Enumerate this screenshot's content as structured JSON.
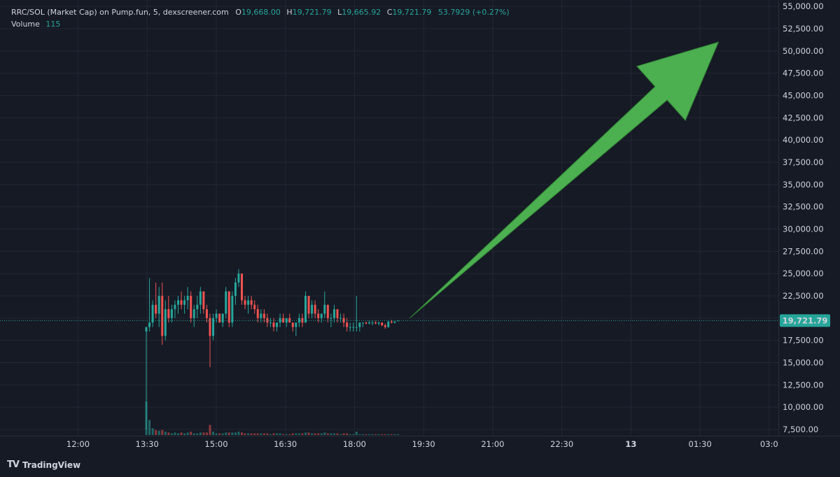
{
  "legend": {
    "symbol": "RRC/SOL (Market Cap) on Pump.fun, 5, dexscreener.com",
    "o_key": "O",
    "o_val": "19,668.00",
    "h_key": "H",
    "h_val": "19,721.79",
    "l_key": "L",
    "l_val": "19,665.92",
    "c_key": "C",
    "c_val": "19,721.79",
    "change": "53.7929 (+0.27%)",
    "volume_label": "Volume",
    "volume_val": "115"
  },
  "brand": {
    "logo": "TV",
    "name": "TradingView"
  },
  "colors": {
    "up": "#26a69a",
    "down": "#ef5350",
    "arrow": "#4caf50",
    "background": "#161a25",
    "grid": "#232734"
  },
  "chart_data": {
    "type": "candlestick",
    "price_axis": {
      "min": 7500,
      "max": 55000,
      "ticks": [
        7500,
        10000,
        12500,
        15000,
        17500,
        20000,
        22500,
        25000,
        27500,
        30000,
        32500,
        35000,
        37500,
        40000,
        42500,
        45000,
        47500,
        50000,
        52500,
        55000
      ],
      "tick_labels": [
        "7,500.00",
        "10,000.00",
        "12,500.00",
        "15,000.00",
        "17,500.00",
        "20,000.00",
        "22,500.00",
        "25,000.00",
        "27,500.00",
        "30,000.00",
        "32,500.00",
        "35,000.00",
        "37,500.00",
        "40,000.00",
        "42,500.00",
        "45,000.00",
        "47,500.00",
        "50,000.00",
        "52,500.00",
        "55,000.00"
      ]
    },
    "time_axis": {
      "start_hours": 11.4,
      "end_hours": 27.2,
      "tick_hours": [
        12,
        13.5,
        15,
        16.5,
        18,
        19.5,
        21,
        22.5,
        24,
        25.5,
        27
      ],
      "tick_labels": [
        "12:00",
        "13:30",
        "15:00",
        "16:30",
        "18:00",
        "19:30",
        "21:00",
        "22:30",
        "13",
        "01:30",
        "03:0"
      ]
    },
    "grid": true,
    "last_price": 19721.79,
    "last_price_label": "19,721.79",
    "candles": [
      [
        18500,
        19000,
        7500,
        19000,
        40
      ],
      [
        19000,
        24500,
        18500,
        19500,
        18
      ],
      [
        19500,
        22000,
        19000,
        21500,
        8
      ],
      [
        21500,
        24000,
        20000,
        20500,
        6
      ],
      [
        20500,
        23500,
        19000,
        22500,
        5
      ],
      [
        22500,
        24000,
        17000,
        18000,
        6
      ],
      [
        18000,
        22000,
        17500,
        21000,
        4
      ],
      [
        21000,
        22500,
        19500,
        20000,
        3
      ],
      [
        20000,
        21500,
        19500,
        21000,
        2
      ],
      [
        21000,
        22000,
        20000,
        21500,
        3
      ],
      [
        21500,
        22500,
        20500,
        22000,
        2
      ],
      [
        22000,
        23000,
        21000,
        21500,
        3
      ],
      [
        21500,
        22500,
        20500,
        22000,
        2
      ],
      [
        22000,
        23500,
        21000,
        22500,
        3
      ],
      [
        22500,
        23000,
        19500,
        20000,
        4
      ],
      [
        20000,
        21500,
        19000,
        21000,
        2
      ],
      [
        21000,
        22500,
        20000,
        21500,
        2
      ],
      [
        21500,
        23500,
        20500,
        23000,
        3
      ],
      [
        23000,
        23000,
        20500,
        21000,
        3
      ],
      [
        21000,
        21500,
        19500,
        20000,
        3
      ],
      [
        20000,
        20500,
        14500,
        18000,
        12
      ],
      [
        18000,
        20500,
        17500,
        20000,
        4
      ],
      [
        20000,
        21000,
        19500,
        20500,
        2
      ],
      [
        20500,
        20500,
        19500,
        19500,
        2
      ],
      [
        19500,
        20500,
        19000,
        20500,
        2
      ],
      [
        20500,
        23500,
        20000,
        23000,
        3
      ],
      [
        23000,
        23000,
        19000,
        19500,
        3
      ],
      [
        19500,
        23000,
        19000,
        22500,
        3
      ],
      [
        22500,
        24500,
        21500,
        24000,
        3
      ],
      [
        24000,
        25500,
        23500,
        25000,
        4
      ],
      [
        25000,
        25000,
        21500,
        22000,
        3
      ],
      [
        22000,
        22500,
        21000,
        21500,
        2
      ],
      [
        21500,
        22500,
        20500,
        22000,
        2
      ],
      [
        22000,
        22500,
        21000,
        21500,
        2
      ],
      [
        21500,
        22000,
        20500,
        21000,
        2
      ],
      [
        21000,
        21500,
        19500,
        20000,
        2
      ],
      [
        20000,
        21000,
        19500,
        20500,
        2
      ],
      [
        20500,
        21000,
        19500,
        20000,
        2
      ],
      [
        20000,
        20500,
        19000,
        19500,
        2
      ],
      [
        19500,
        20000,
        19000,
        19500,
        1
      ],
      [
        19500,
        20000,
        18500,
        19000,
        2
      ],
      [
        19000,
        19500,
        18500,
        19500,
        2
      ],
      [
        19500,
        20500,
        19000,
        20000,
        2
      ],
      [
        20000,
        20500,
        19500,
        19500,
        1
      ],
      [
        19500,
        20000,
        19000,
        20000,
        1
      ],
      [
        20000,
        20500,
        19500,
        19500,
        1
      ],
      [
        19500,
        19500,
        18500,
        19000,
        2
      ],
      [
        19000,
        19500,
        18000,
        19500,
        2
      ],
      [
        19500,
        20500,
        19000,
        20000,
        2
      ],
      [
        20000,
        20500,
        19000,
        19500,
        2
      ],
      [
        19500,
        23000,
        19500,
        22500,
        3
      ],
      [
        22500,
        22500,
        20000,
        20500,
        3
      ],
      [
        20500,
        22000,
        20000,
        21500,
        2
      ],
      [
        21500,
        22000,
        20000,
        20500,
        2
      ],
      [
        20500,
        21000,
        19500,
        20000,
        2
      ],
      [
        20000,
        20500,
        19500,
        20500,
        2
      ],
      [
        20500,
        23000,
        20000,
        21500,
        3
      ],
      [
        21500,
        21500,
        19500,
        20000,
        2
      ],
      [
        20000,
        20500,
        19000,
        20000,
        2
      ],
      [
        20000,
        21500,
        19500,
        21000,
        2
      ],
      [
        21000,
        21000,
        19500,
        20000,
        2
      ],
      [
        20000,
        20500,
        19500,
        20000,
        1
      ],
      [
        20000,
        20500,
        19000,
        19500,
        2
      ],
      [
        19500,
        20000,
        18500,
        19000,
        2
      ],
      [
        19000,
        19500,
        18500,
        19000,
        1
      ],
      [
        19000,
        19500,
        18500,
        19000,
        1
      ],
      [
        19000,
        22500,
        18500,
        19000,
        4
      ],
      [
        19000,
        19500,
        18500,
        19500,
        1
      ],
      [
        19500,
        19500,
        19000,
        19500,
        1
      ],
      [
        19500,
        19600,
        19300,
        19400,
        1
      ],
      [
        19400,
        19700,
        19300,
        19500,
        1
      ],
      [
        19500,
        19700,
        19200,
        19500,
        1
      ],
      [
        19500,
        19700,
        19300,
        19400,
        1
      ],
      [
        19400,
        19600,
        19200,
        19500,
        1
      ],
      [
        19500,
        19500,
        19100,
        19200,
        1
      ],
      [
        19200,
        19400,
        18800,
        19000,
        1
      ],
      [
        19000,
        19700,
        18900,
        19600,
        1
      ],
      [
        19600,
        19800,
        19400,
        19500,
        1
      ],
      [
        19500,
        19700,
        19400,
        19600,
        1
      ],
      [
        19668,
        19721.79,
        19665.92,
        19721.79,
        1
      ]
    ],
    "annotation": {
      "type": "arrow",
      "from_hours": 19.2,
      "from_price": 20000,
      "to_hours": 25.9,
      "to_price": 51000
    }
  }
}
